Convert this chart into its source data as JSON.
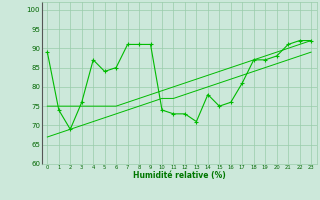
{
  "x": [
    0,
    1,
    2,
    3,
    4,
    5,
    6,
    7,
    8,
    9,
    10,
    11,
    12,
    13,
    14,
    15,
    16,
    17,
    18,
    19,
    20,
    21,
    22,
    23
  ],
  "y_main": [
    89,
    74,
    69,
    76,
    87,
    84,
    85,
    91,
    91,
    91,
    74,
    73,
    73,
    71,
    78,
    75,
    76,
    81,
    87,
    87,
    88,
    91,
    92,
    92
  ],
  "y_trend1": [
    75,
    75,
    75,
    75,
    75,
    75,
    75,
    76,
    77,
    78,
    79,
    80,
    81,
    82,
    83,
    84,
    85,
    86,
    87,
    88,
    89,
    90,
    91,
    92
  ],
  "y_trend2": [
    67,
    68,
    69,
    70,
    71,
    72,
    73,
    74,
    75,
    76,
    77,
    77,
    78,
    79,
    80,
    81,
    82,
    83,
    84,
    85,
    86,
    87,
    88,
    89
  ],
  "line_color": "#00bb00",
  "bg_color": "#cce8da",
  "grid_color": "#99ccaa",
  "ylim": [
    60,
    102
  ],
  "yticks": [
    60,
    65,
    70,
    75,
    80,
    85,
    90,
    95,
    100
  ],
  "xlabel": "Humidité relative (%)",
  "xlabel_color": "#007700",
  "tick_color": "#006600"
}
